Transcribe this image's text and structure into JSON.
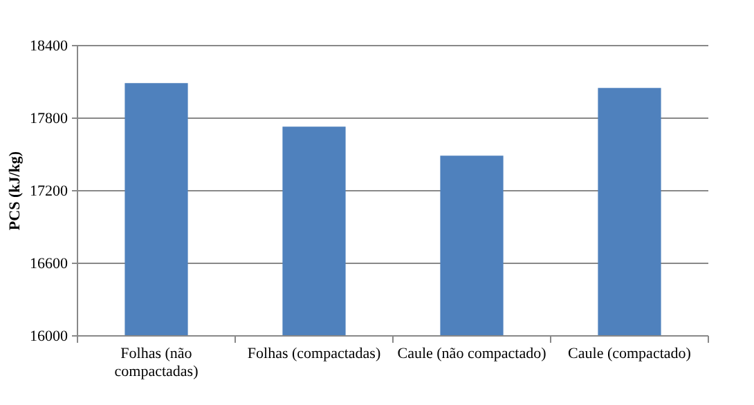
{
  "chart_data": {
    "type": "bar",
    "ylabel": "PCS (kJ/kg)",
    "categories": [
      "Folhas (não compactadas)",
      "Folhas (compactadas)",
      "Caule (não compactado)",
      "Caule (compactado)"
    ],
    "values": [
      18090,
      17730,
      17490,
      18050
    ],
    "color": "#4f81bd",
    "ylim": [
      16000,
      18400
    ],
    "yticks": [
      16000,
      16600,
      17200,
      17800,
      18400
    ],
    "grid": "y"
  }
}
